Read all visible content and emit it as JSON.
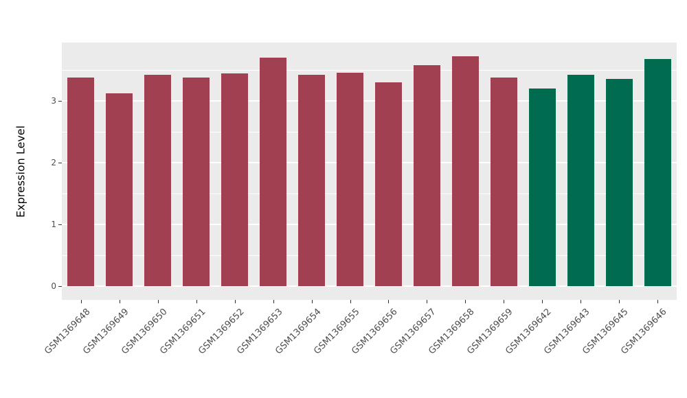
{
  "chart_data": {
    "type": "bar",
    "title": "",
    "xlabel": "",
    "ylabel": "Expression Level",
    "categories": [
      "GSM1369648",
      "GSM1369649",
      "GSM1369650",
      "GSM1369651",
      "GSM1369652",
      "GSM1369653",
      "GSM1369654",
      "GSM1369655",
      "GSM1369656",
      "GSM1369657",
      "GSM1369658",
      "GSM1369659",
      "GSM1369642",
      "GSM1369643",
      "GSM1369645",
      "GSM1369646"
    ],
    "values": [
      3.38,
      3.12,
      3.42,
      3.38,
      3.45,
      3.7,
      3.42,
      3.46,
      3.3,
      3.58,
      3.72,
      3.38,
      3.2,
      3.42,
      3.36,
      3.68
    ],
    "groups": [
      "red",
      "red",
      "red",
      "red",
      "red",
      "red",
      "red",
      "red",
      "red",
      "red",
      "red",
      "red",
      "green",
      "green",
      "green",
      "green"
    ],
    "colors": {
      "red": "#A04050",
      "green": "#006B4F"
    },
    "yticks": [
      0,
      1,
      2,
      3
    ],
    "yticks_minor": [
      0.5,
      1.5,
      2.5,
      3.5
    ],
    "ylim": [
      0,
      3.95
    ],
    "grid": true,
    "legend": "none",
    "panel_bg": "#EBEBEB",
    "grid_color": "#FFFFFF"
  }
}
